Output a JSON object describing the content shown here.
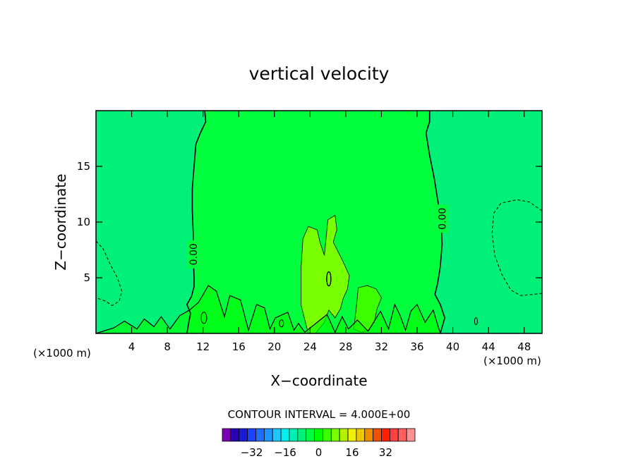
{
  "chart_data": {
    "type": "heatmap",
    "title": "vertical velocity",
    "xlabel": "X−coordinate",
    "ylabel": "Z−coordinate",
    "x_unit_left": "(×1000 m)",
    "x_unit_right": "(×1000 m)",
    "xlim": [
      0,
      50
    ],
    "ylim": [
      0,
      20
    ],
    "x_ticks": [
      4,
      8,
      12,
      16,
      20,
      24,
      28,
      32,
      36,
      40,
      44,
      48
    ],
    "y_ticks": [
      5,
      10,
      15
    ],
    "contour_interval_text": "CONTOUR INTERVAL = 4.000E+00",
    "contour_interval": 4,
    "contour_labels": [
      {
        "text": "0.00",
        "x": 10.9,
        "z": 7.1
      },
      {
        "text": "0.00",
        "x": 38.8,
        "z": 10.3
      }
    ],
    "regions": [
      {
        "level": -4,
        "description": "weak downdraft, x 0-3, z 2-8"
      },
      {
        "level": 0,
        "description": "near-zero band, x 11-38"
      },
      {
        "level": -4,
        "description": "weak downdraft, x 44-50, z 3.5-12"
      },
      {
        "level": 4,
        "description": "updraft plume, x 23-29, z 0-10"
      },
      {
        "level": 4,
        "description": "updraft cell, x 29-32, z 0-4"
      }
    ],
    "colorbar": {
      "tick_labels": [
        "−32",
        "−16",
        "0",
        "16",
        "32"
      ],
      "tick_values": [
        -32,
        -16,
        0,
        16,
        32
      ],
      "colors": [
        "#7d00b4",
        "#2a00b4",
        "#1a1ad6",
        "#1e40ff",
        "#1e6eff",
        "#1e96ff",
        "#1ec8ff",
        "#00f0f0",
        "#00f0b4",
        "#00f078",
        "#00ff3c",
        "#00ff00",
        "#3cff00",
        "#78ff00",
        "#b4f000",
        "#f0f000",
        "#f0c800",
        "#f08c00",
        "#f05000",
        "#ff2000",
        "#ff4040",
        "#ff6060",
        "#ff9090"
      ]
    },
    "fill_colors": {
      "neg_4": "#00f078",
      "zero": "#00ff3c",
      "pos_4": "#00ff00",
      "pos_8": "#3cff00",
      "pos_12": "#78ff00"
    }
  }
}
